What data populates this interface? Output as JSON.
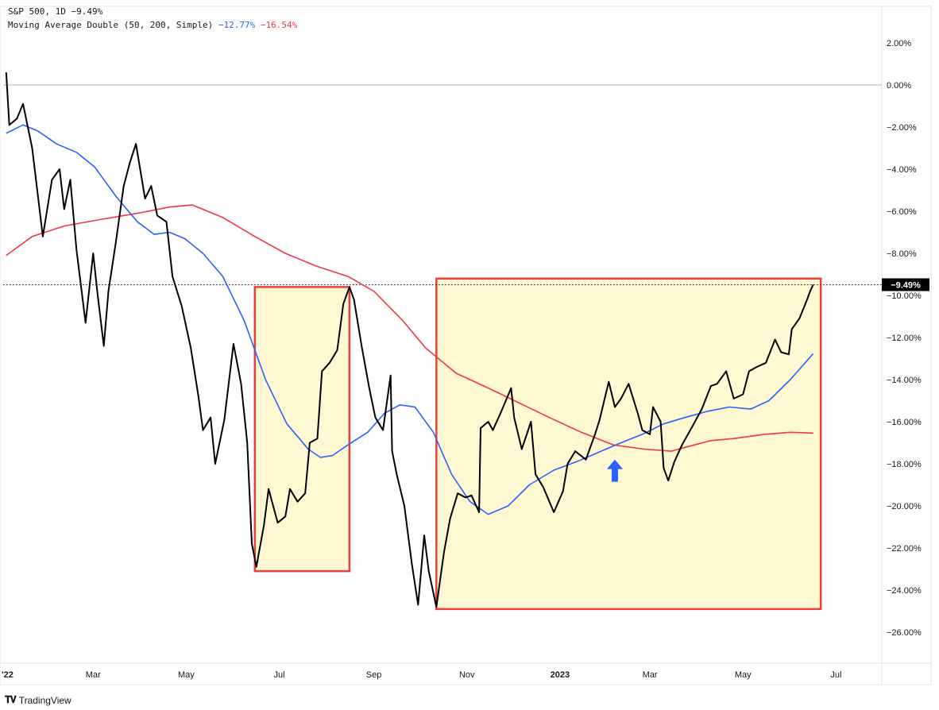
{
  "legend": {
    "symbol": "S&P 500, 1D",
    "change": "−9.49%",
    "ma_label": "Moving Average Double (50, 200, Simple)",
    "ma_fast_value": "−12.77%",
    "ma_slow_value": "−16.54%"
  },
  "colors": {
    "price": "#000000",
    "ma_fast": "#2962ff",
    "ma_slow": "#f23645",
    "box_border": "#e8413a",
    "box_fill": "#fff8d2",
    "arrow": "#2962ff",
    "price_tag_bg": "#000000"
  },
  "brand": {
    "icon": "tradingview-logo-icon",
    "label": "TradingView"
  },
  "chart_data": {
    "type": "line",
    "y_unit": "percent",
    "ylim": [
      -26.5,
      3
    ],
    "x_range": [
      "2022-01-01",
      "2023-07-31"
    ],
    "y_ticks": [
      2,
      0,
      -2,
      -4,
      -6,
      -8,
      -10,
      -12,
      -14,
      -16,
      -18,
      -20,
      -22,
      -24,
      -26
    ],
    "y_tick_labels": [
      "2.00%",
      "0.00%",
      "−2.00%",
      "−4.00%",
      "−6.00%",
      "−8.00%",
      "−10.00%",
      "−12.00%",
      "−14.00%",
      "−16.00%",
      "−18.00%",
      "−20.00%",
      "−22.00%",
      "−24.00%",
      "−26.00%"
    ],
    "x_ticks": [
      {
        "date": "2022-01-01",
        "label": "'22",
        "bold": true
      },
      {
        "date": "2022-03-01",
        "label": "Mar",
        "bold": false
      },
      {
        "date": "2022-05-01",
        "label": "May",
        "bold": false
      },
      {
        "date": "2022-07-01",
        "label": "Jul",
        "bold": false
      },
      {
        "date": "2022-09-01",
        "label": "Sep",
        "bold": false
      },
      {
        "date": "2022-11-01",
        "label": "Nov",
        "bold": false
      },
      {
        "date": "2023-01-01",
        "label": "2023",
        "bold": true
      },
      {
        "date": "2023-03-01",
        "label": "Mar",
        "bold": false
      },
      {
        "date": "2023-05-01",
        "label": "May",
        "bold": false
      },
      {
        "date": "2023-07-01",
        "label": "Jul",
        "bold": false
      }
    ],
    "reference_lines": [
      {
        "y": 0
      }
    ],
    "last_price": {
      "value": -9.49,
      "label": "−9.49%"
    },
    "series": [
      {
        "name": "S&P 500",
        "role": "price",
        "points": [
          [
            "2022-01-03",
            0.6
          ],
          [
            "2022-01-05",
            -1.9
          ],
          [
            "2022-01-10",
            -1.6
          ],
          [
            "2022-01-14",
            -0.9
          ],
          [
            "2022-01-20",
            -3.0
          ],
          [
            "2022-01-27",
            -7.2
          ],
          [
            "2022-02-02",
            -4.5
          ],
          [
            "2022-02-07",
            -4.0
          ],
          [
            "2022-02-10",
            -5.9
          ],
          [
            "2022-02-14",
            -4.5
          ],
          [
            "2022-02-18",
            -7.8
          ],
          [
            "2022-02-24",
            -11.3
          ],
          [
            "2022-03-01",
            -8.0
          ],
          [
            "2022-03-04",
            -10.0
          ],
          [
            "2022-03-08",
            -12.4
          ],
          [
            "2022-03-11",
            -9.8
          ],
          [
            "2022-03-16",
            -7.4
          ],
          [
            "2022-03-21",
            -4.8
          ],
          [
            "2022-03-25",
            -3.7
          ],
          [
            "2022-03-29",
            -2.8
          ],
          [
            "2022-04-04",
            -5.4
          ],
          [
            "2022-04-08",
            -4.8
          ],
          [
            "2022-04-12",
            -6.2
          ],
          [
            "2022-04-18",
            -6.5
          ],
          [
            "2022-04-22",
            -9.1
          ],
          [
            "2022-04-28",
            -10.5
          ],
          [
            "2022-05-04",
            -12.5
          ],
          [
            "2022-05-09",
            -14.8
          ],
          [
            "2022-05-12",
            -16.4
          ],
          [
            "2022-05-17",
            -15.8
          ],
          [
            "2022-05-20",
            -18.0
          ],
          [
            "2022-05-26",
            -15.9
          ],
          [
            "2022-06-01",
            -12.3
          ],
          [
            "2022-06-06",
            -14.2
          ],
          [
            "2022-06-10",
            -17.0
          ],
          [
            "2022-06-13",
            -21.8
          ],
          [
            "2022-06-16",
            -22.9
          ],
          [
            "2022-06-21",
            -20.9
          ],
          [
            "2022-06-24",
            -19.2
          ],
          [
            "2022-06-30",
            -20.8
          ],
          [
            "2022-07-05",
            -20.5
          ],
          [
            "2022-07-08",
            -19.2
          ],
          [
            "2022-07-13",
            -19.8
          ],
          [
            "2022-07-18",
            -19.4
          ],
          [
            "2022-07-21",
            -17.0
          ],
          [
            "2022-07-26",
            -16.8
          ],
          [
            "2022-07-29",
            -13.6
          ],
          [
            "2022-08-03",
            -13.2
          ],
          [
            "2022-08-08",
            -12.6
          ],
          [
            "2022-08-12",
            -10.4
          ],
          [
            "2022-08-16",
            -9.6
          ],
          [
            "2022-08-19",
            -10.2
          ],
          [
            "2022-08-24",
            -12.4
          ],
          [
            "2022-08-29",
            -14.4
          ],
          [
            "2022-09-02",
            -15.8
          ],
          [
            "2022-09-07",
            -16.4
          ],
          [
            "2022-09-12",
            -13.8
          ],
          [
            "2022-09-13",
            -17.4
          ],
          [
            "2022-09-16",
            -18.5
          ],
          [
            "2022-09-21",
            -20.0
          ],
          [
            "2022-09-26",
            -22.8
          ],
          [
            "2022-09-30",
            -24.7
          ],
          [
            "2022-10-04",
            -21.4
          ],
          [
            "2022-10-07",
            -23.1
          ],
          [
            "2022-10-12",
            -24.8
          ],
          [
            "2022-10-17",
            -22.2
          ],
          [
            "2022-10-21",
            -20.6
          ],
          [
            "2022-10-26",
            -19.4
          ],
          [
            "2022-10-31",
            -19.6
          ],
          [
            "2022-11-04",
            -19.5
          ],
          [
            "2022-11-09",
            -20.3
          ],
          [
            "2022-11-10",
            -16.3
          ],
          [
            "2022-11-15",
            -16.0
          ],
          [
            "2022-11-18",
            -16.4
          ],
          [
            "2022-11-23",
            -15.6
          ],
          [
            "2022-11-30",
            -14.4
          ],
          [
            "2022-12-02",
            -15.8
          ],
          [
            "2022-12-07",
            -17.3
          ],
          [
            "2022-12-13",
            -16.0
          ],
          [
            "2022-12-16",
            -18.5
          ],
          [
            "2022-12-21",
            -19.1
          ],
          [
            "2022-12-28",
            -20.3
          ],
          [
            "2023-01-03",
            -19.3
          ],
          [
            "2023-01-06",
            -18.0
          ],
          [
            "2023-01-11",
            -17.4
          ],
          [
            "2023-01-18",
            -17.8
          ],
          [
            "2023-01-24",
            -16.6
          ],
          [
            "2023-01-27",
            -15.9
          ],
          [
            "2023-02-02",
            -14.1
          ],
          [
            "2023-02-06",
            -15.3
          ],
          [
            "2023-02-10",
            -14.9
          ],
          [
            "2023-02-15",
            -14.2
          ],
          [
            "2023-02-21",
            -15.6
          ],
          [
            "2023-02-24",
            -16.4
          ],
          [
            "2023-03-01",
            -16.6
          ],
          [
            "2023-03-03",
            -15.3
          ],
          [
            "2023-03-08",
            -16.0
          ],
          [
            "2023-03-10",
            -18.2
          ],
          [
            "2023-03-13",
            -18.8
          ],
          [
            "2023-03-17",
            -17.9
          ],
          [
            "2023-03-22",
            -17.1
          ],
          [
            "2023-03-29",
            -16.2
          ],
          [
            "2023-04-04",
            -15.4
          ],
          [
            "2023-04-10",
            -14.3
          ],
          [
            "2023-04-14",
            -14.2
          ],
          [
            "2023-04-20",
            -13.6
          ],
          [
            "2023-04-25",
            -14.9
          ],
          [
            "2023-05-01",
            -14.7
          ],
          [
            "2023-05-05",
            -13.6
          ],
          [
            "2023-05-10",
            -13.4
          ],
          [
            "2023-05-16",
            -13.2
          ],
          [
            "2023-05-22",
            -12.1
          ],
          [
            "2023-05-26",
            -12.7
          ],
          [
            "2023-05-31",
            -12.8
          ],
          [
            "2023-06-02",
            -11.6
          ],
          [
            "2023-06-07",
            -11.1
          ],
          [
            "2023-06-12",
            -10.2
          ],
          [
            "2023-06-14",
            -9.8
          ],
          [
            "2023-06-16",
            -9.49
          ]
        ]
      },
      {
        "name": "MA 50",
        "role": "ma_fast",
        "points": [
          [
            "2022-01-03",
            -2.3
          ],
          [
            "2022-01-14",
            -1.9
          ],
          [
            "2022-01-24",
            -2.2
          ],
          [
            "2022-02-05",
            -2.8
          ],
          [
            "2022-02-18",
            -3.2
          ],
          [
            "2022-03-02",
            -3.9
          ],
          [
            "2022-03-16",
            -5.3
          ],
          [
            "2022-03-30",
            -6.5
          ],
          [
            "2022-04-10",
            -7.1
          ],
          [
            "2022-04-20",
            -7.0
          ],
          [
            "2022-04-30",
            -7.3
          ],
          [
            "2022-05-12",
            -8.0
          ],
          [
            "2022-05-25",
            -9.1
          ],
          [
            "2022-06-08",
            -11.2
          ],
          [
            "2022-06-22",
            -14.0
          ],
          [
            "2022-07-06",
            -16.1
          ],
          [
            "2022-07-20",
            -17.3
          ],
          [
            "2022-07-28",
            -17.7
          ],
          [
            "2022-08-05",
            -17.6
          ],
          [
            "2022-08-15",
            -17.1
          ],
          [
            "2022-08-28",
            -16.5
          ],
          [
            "2022-09-08",
            -15.6
          ],
          [
            "2022-09-18",
            -15.2
          ],
          [
            "2022-09-28",
            -15.3
          ],
          [
            "2022-10-10",
            -16.5
          ],
          [
            "2022-10-22",
            -18.5
          ],
          [
            "2022-11-03",
            -19.8
          ],
          [
            "2022-11-15",
            -20.4
          ],
          [
            "2022-11-28",
            -20.0
          ],
          [
            "2022-12-12",
            -19.0
          ],
          [
            "2022-12-28",
            -18.3
          ],
          [
            "2023-01-12",
            -17.9
          ],
          [
            "2023-01-28",
            -17.4
          ],
          [
            "2023-02-10",
            -17.0
          ],
          [
            "2023-02-24",
            -16.6
          ],
          [
            "2023-03-10",
            -16.1
          ],
          [
            "2023-03-24",
            -15.8
          ],
          [
            "2023-04-08",
            -15.5
          ],
          [
            "2023-04-22",
            -15.3
          ],
          [
            "2023-05-06",
            -15.4
          ],
          [
            "2023-05-18",
            -15.0
          ],
          [
            "2023-06-01",
            -14.0
          ],
          [
            "2023-06-16",
            -12.77
          ]
        ]
      },
      {
        "name": "MA 200",
        "role": "ma_slow",
        "points": [
          [
            "2022-01-03",
            -8.1
          ],
          [
            "2022-01-20",
            -7.2
          ],
          [
            "2022-02-10",
            -6.7
          ],
          [
            "2022-03-05",
            -6.4
          ],
          [
            "2022-03-30",
            -6.1
          ],
          [
            "2022-04-20",
            -5.8
          ],
          [
            "2022-05-05",
            -5.7
          ],
          [
            "2022-05-25",
            -6.3
          ],
          [
            "2022-06-15",
            -7.2
          ],
          [
            "2022-07-05",
            -8.0
          ],
          [
            "2022-07-25",
            -8.6
          ],
          [
            "2022-08-15",
            -9.1
          ],
          [
            "2022-09-01",
            -9.8
          ],
          [
            "2022-09-20",
            -11.2
          ],
          [
            "2022-10-05",
            -12.5
          ],
          [
            "2022-10-25",
            -13.7
          ],
          [
            "2022-11-15",
            -14.4
          ],
          [
            "2022-12-05",
            -15.1
          ],
          [
            "2022-12-25",
            -15.8
          ],
          [
            "2023-01-15",
            -16.5
          ],
          [
            "2023-02-05",
            -17.1
          ],
          [
            "2023-02-25",
            -17.3
          ],
          [
            "2023-03-15",
            -17.4
          ],
          [
            "2023-03-25",
            -17.2
          ],
          [
            "2023-04-10",
            -16.9
          ],
          [
            "2023-04-25",
            -16.8
          ],
          [
            "2023-05-15",
            -16.6
          ],
          [
            "2023-06-01",
            -16.5
          ],
          [
            "2023-06-16",
            -16.54
          ]
        ]
      }
    ],
    "annotations": [
      {
        "type": "rect",
        "from": "2022-06-15",
        "to": "2022-08-16",
        "y_top": -9.6,
        "y_bottom": -23.1
      },
      {
        "type": "rect",
        "from": "2022-10-12",
        "to": "2023-06-21",
        "y_top": -9.2,
        "y_bottom": -24.9
      },
      {
        "type": "arrow",
        "direction": "up",
        "date": "2023-02-06",
        "y": -18.4
      }
    ]
  }
}
